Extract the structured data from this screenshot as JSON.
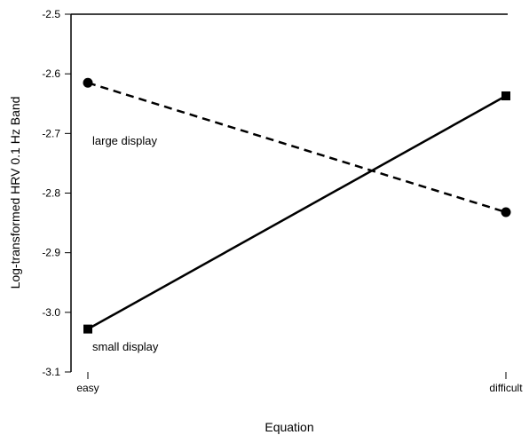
{
  "chart_data": {
    "type": "line",
    "title": "",
    "xlabel": "Equation",
    "ylabel": "Log-transformed HRV 0.1 Hz Band",
    "categories": [
      "easy",
      "difficult"
    ],
    "ylim": [
      -3.1,
      -2.5
    ],
    "yticks": [
      -2.5,
      -2.6,
      -2.7,
      -2.8,
      -2.9,
      -3.0,
      -3.1
    ],
    "ytick_labels": [
      "-2.5",
      "-2.6",
      "-2.7",
      "-2.8",
      "-2.9",
      "-3.0",
      "-3.1"
    ],
    "grid": false,
    "series": [
      {
        "name": "large display",
        "values": [
          -2.615,
          -2.832
        ],
        "line_style": "dashed",
        "marker": "circle",
        "color": "#000000"
      },
      {
        "name": "small display",
        "values": [
          -3.028,
          -2.637
        ],
        "line_style": "solid",
        "marker": "square",
        "color": "#000000"
      }
    ]
  }
}
